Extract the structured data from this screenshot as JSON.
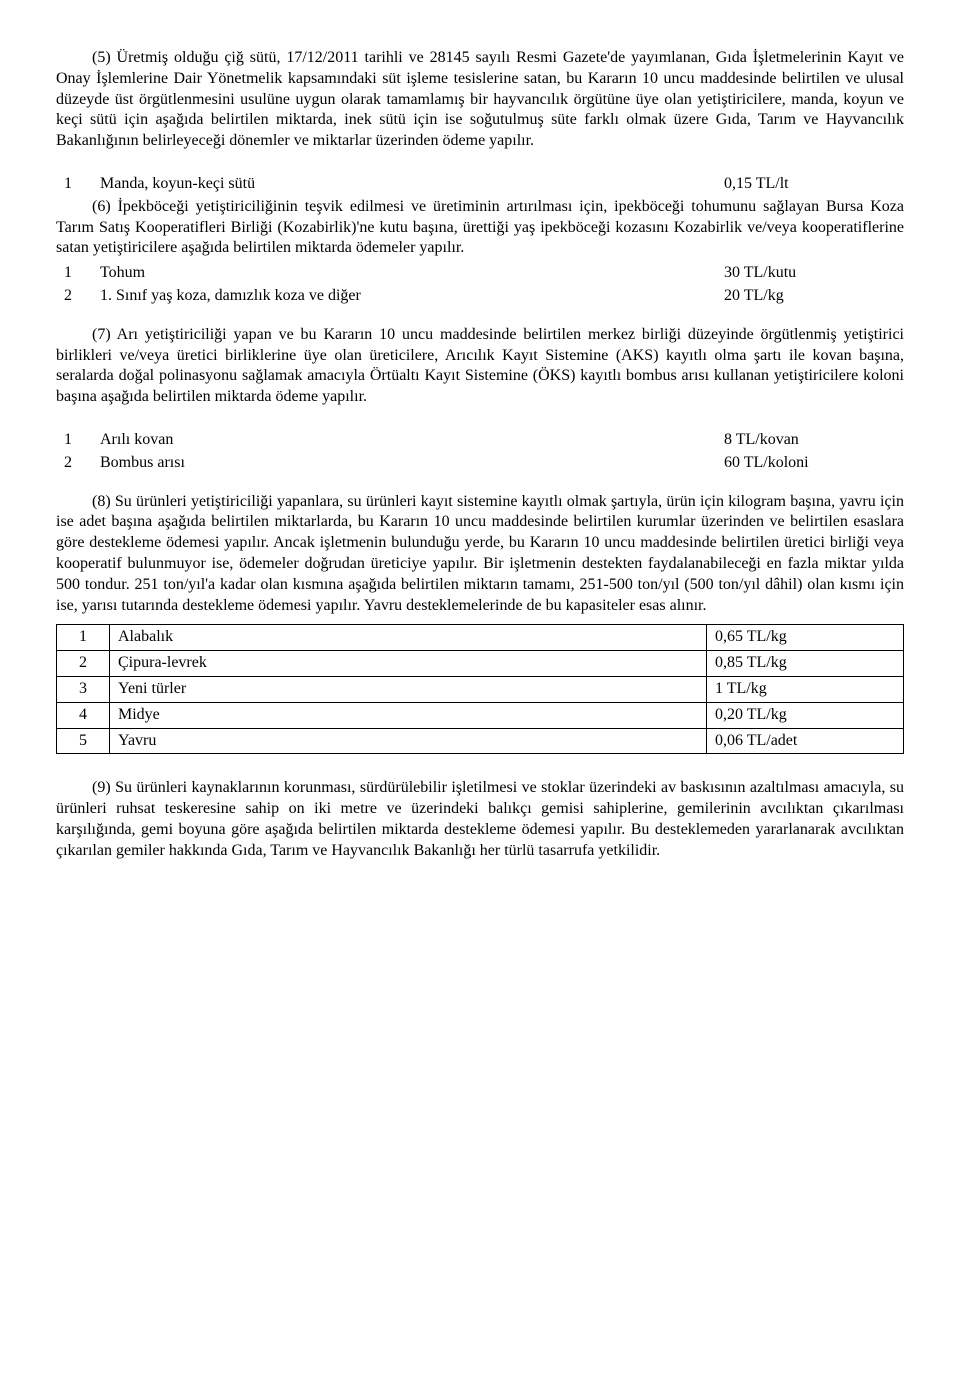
{
  "para5": "(5) Üretmiş olduğu çiğ sütü, 17/12/2011 tarihli ve 28145 sayılı Resmi Gazete'de yayımlanan, Gıda İşletmelerinin Kayıt ve Onay İşlemlerine Dair Yönetmelik kapsamındaki süt işleme tesislerine satan, bu Kararın 10 uncu maddesinde belirtilen ve ulusal düzeyde üst örgütlenmesini usulüne uygun olarak tamamlamış bir hayvancılık örgütüne üye olan yetiştiricilere, manda, koyun ve keçi sütü için aşağıda belirtilen miktarda, inek sütü için ise soğutulmuş süte farklı olmak üzere Gıda, Tarım ve Hayvancılık Bakanlığının belirleyeceği dönemler ve miktarlar üzerinden ödeme yapılır.",
  "row5": {
    "num": "1",
    "label": "Manda, koyun-keçi sütü",
    "value": "0,15 TL/lt"
  },
  "para6": "(6) İpekböceği yetiştiriciliğinin teşvik edilmesi ve üretiminin artırılması için, ipekböceği tohumunu sağlayan Bursa Koza Tarım Satış Kooperatifleri Birliği (Kozabirlik)'ne kutu başına, ürettiği yaş ipekböceği kozasını Kozabirlik ve/veya kooperatiflerine satan yetiştiricilere aşağıda belirtilen miktarda ödemeler yapılır.",
  "row6a": {
    "num": "1",
    "label": "Tohum",
    "value": "30 TL/kutu"
  },
  "row6b": {
    "num": "2",
    "label": "1. Sınıf yaş koza, damızlık koza ve diğer",
    "value": "20 TL/kg"
  },
  "para7": "(7) Arı yetiştiriciliği yapan ve bu Kararın 10 uncu maddesinde belirtilen merkez birliği düzeyinde örgütlenmiş yetiştirici birlikleri ve/veya üretici birliklerine üye olan üreticilere, Arıcılık Kayıt Sistemine (AKS) kayıtlı olma şartı ile kovan başına, seralarda doğal polinasyonu sağlamak amacıyla Örtüaltı Kayıt Sistemine (ÖKS) kayıtlı bombus arısı kullanan yetiştiricilere koloni başına aşağıda belirtilen miktarda ödeme yapılır.",
  "row7a": {
    "num": "1",
    "label": "Arılı kovan",
    "value": "8 TL/kovan"
  },
  "row7b": {
    "num": "2",
    "label": "Bombus arısı",
    "value": "60 TL/koloni"
  },
  "para8": "(8) Su ürünleri yetiştiriciliği yapanlara, su ürünleri kayıt sistemine kayıtlı olmak şartıyla, ürün için kilogram başına, yavru için ise adet başına aşağıda belirtilen miktarlarda, bu Kararın 10 uncu maddesinde belirtilen kurumlar üzerinden ve belirtilen esaslara göre destekleme ödemesi yapılır. Ancak işletmenin bulunduğu yerde, bu Kararın 10 uncu maddesinde belirtilen üretici birliği veya kooperatif bulunmuyor ise, ödemeler doğrudan üreticiye yapılır. Bir işletmenin destekten faydalanabileceği en fazla miktar yılda 500 tondur. 251 ton/yıl'a kadar olan kısmına aşağıda belirtilen miktarın tamamı, 251-500 ton/yıl (500 ton/yıl dâhil) olan kısmı için ise, yarısı tutarında destekleme ödemesi yapılır. Yavru desteklemelerinde de bu kapasiteler esas alınır.",
  "table8": {
    "rows": [
      {
        "num": "1",
        "label": "Alabalık",
        "value": "0,65 TL/kg"
      },
      {
        "num": "2",
        "label": "Çipura-levrek",
        "value": "0,85 TL/kg"
      },
      {
        "num": "3",
        "label": "Yeni türler",
        "value": "1 TL/kg"
      },
      {
        "num": "4",
        "label": "Midye",
        "value": "0,20 TL/kg"
      },
      {
        "num": "5",
        "label": "Yavru",
        "value": "0,06 TL/adet"
      }
    ]
  },
  "para9": "(9) Su ürünleri kaynaklarının korunması, sürdürülebilir işletilmesi ve stoklar üzerindeki av baskısının azaltılması amacıyla, su ürünleri ruhsat teskeresine sahip on iki metre ve üzerindeki balıkçı gemisi sahiplerine, gemilerinin avcılıktan çıkarılması karşılığında, gemi boyuna göre aşağıda belirtilen miktarda destekleme ödemesi yapılır. Bu desteklemeden yararlanarak avcılıktan çıkarılan gemiler hakkında Gıda, Tarım ve Hayvancılık Bakanlığı her türlü tasarrufa yetkilidir."
}
